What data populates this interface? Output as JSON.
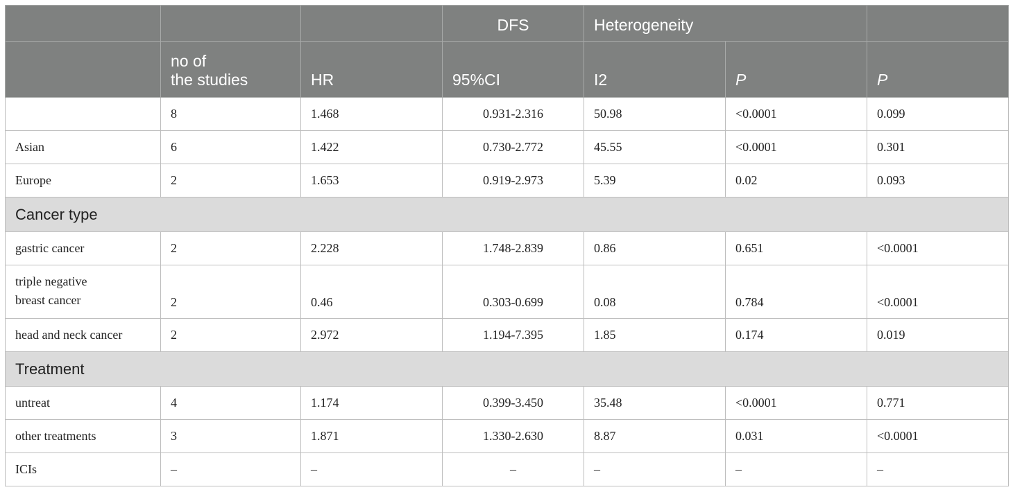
{
  "header": {
    "group_row": [
      "",
      "",
      "",
      "DFS",
      "Heterogeneity",
      "",
      ""
    ],
    "columns": [
      "",
      "no of\nthe studies",
      "HR",
      "95%CI",
      "I2",
      "P",
      "P"
    ]
  },
  "rows": [
    {
      "label": "",
      "n": "8",
      "hr": "1.468",
      "ci": "0.931-2.316",
      "i2": "50.98",
      "p1": "<0.0001",
      "p2": "0.099"
    },
    {
      "label": "Asian",
      "n": "6",
      "hr": "1.422",
      "ci": "0.730-2.772",
      "i2": "45.55",
      "p1": "<0.0001",
      "p2": "0.301"
    },
    {
      "label": "Europe",
      "n": "2",
      "hr": "1.653",
      "ci": "0.919-2.973",
      "i2": "5.39",
      "p1": "0.02",
      "p2": "0.093"
    }
  ],
  "sections": [
    {
      "title": "Cancer type",
      "rows": [
        {
          "label": "gastric cancer",
          "n": "2",
          "hr": "2.228",
          "ci": "1.748-2.839",
          "i2": "0.86",
          "p1": "0.651",
          "p2": "<0.0001"
        },
        {
          "label": "triple negative\nbreast cancer",
          "n": "2",
          "hr": "0.46",
          "ci": "0.303-0.699",
          "i2": "0.08",
          "p1": "0.784",
          "p2": "<0.0001"
        },
        {
          "label": "head and neck cancer",
          "n": "2",
          "hr": "2.972",
          "ci": "1.194-7.395",
          "i2": "1.85",
          "p1": "0.174",
          "p2": "0.019"
        }
      ]
    },
    {
      "title": "Treatment",
      "rows": [
        {
          "label": "untreat",
          "n": "4",
          "hr": "1.174",
          "ci": "0.399-3.450",
          "i2": "35.48",
          "p1": "<0.0001",
          "p2": "0.771"
        },
        {
          "label": "other treatments",
          "n": "3",
          "hr": "1.871",
          "ci": "1.330-2.630",
          "i2": "8.87",
          "p1": "0.031",
          "p2": "<0.0001"
        },
        {
          "label": "ICIs",
          "n": "–",
          "hr": "–",
          "ci": "–",
          "i2": "–",
          "p1": "–",
          "p2": "–"
        }
      ]
    }
  ]
}
